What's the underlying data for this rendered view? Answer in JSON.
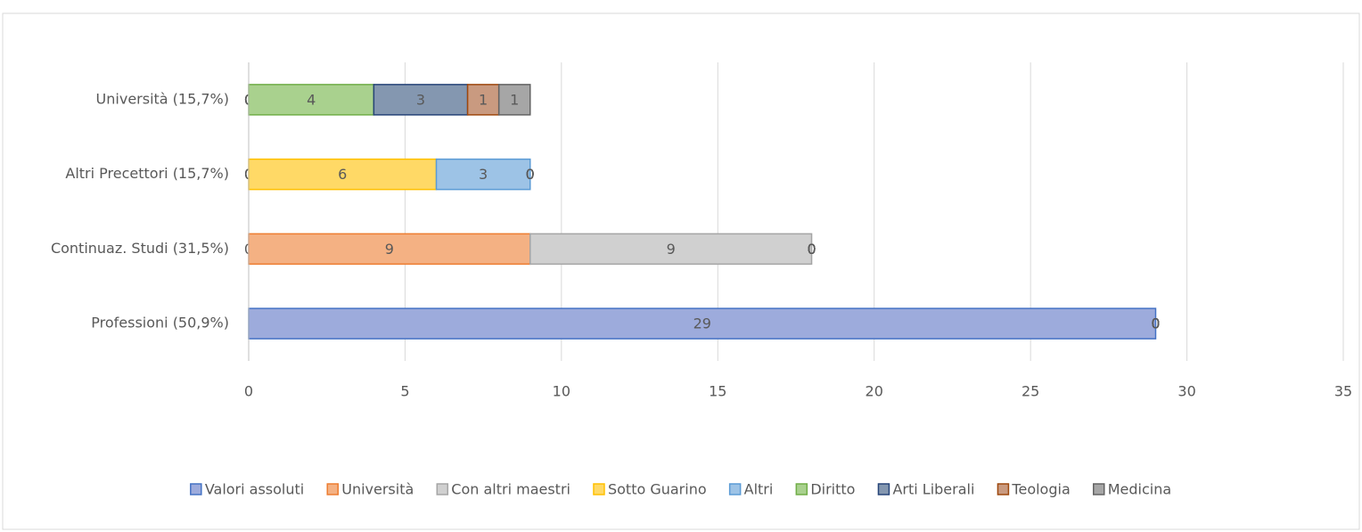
{
  "chart_data": {
    "type": "stacked_barh",
    "categories": [
      "Professioni (50,9%)",
      "Continuaz. Studi (31,5%)",
      "Altri Precettori (15,7%)",
      "Università (15,7%)"
    ],
    "series": [
      {
        "name": "Valori assoluti",
        "color": "#9dabdc",
        "edgecolor": "#4472c4",
        "values": [
          29,
          0,
          0,
          0
        ]
      },
      {
        "name": "Università",
        "color": "#f4b183",
        "edgecolor": "#ed7d31",
        "values": [
          0,
          9,
          0,
          0
        ]
      },
      {
        "name": "Con altri maestri",
        "color": "#d0d0d0",
        "edgecolor": "#a5a5a5",
        "values": [
          0,
          9,
          0,
          0
        ]
      },
      {
        "name": "Sotto Guarino",
        "color": "#ffd966",
        "edgecolor": "#ffc000",
        "values": [
          0,
          0,
          6,
          0
        ]
      },
      {
        "name": "Altri",
        "color": "#9dc3e6",
        "edgecolor": "#5b9bd5",
        "values": [
          0,
          0,
          3,
          0
        ]
      },
      {
        "name": "Diritto",
        "color": "#a9d18e",
        "edgecolor": "#70ad47",
        "values": [
          0,
          0,
          0,
          4
        ]
      },
      {
        "name": "Arti Liberali",
        "color": "#8497b0",
        "edgecolor": "#264478",
        "values": [
          0,
          0,
          0,
          3
        ]
      },
      {
        "name": "Teologia",
        "color": "#c99a80",
        "edgecolor": "#9e480e",
        "values": [
          0,
          0,
          0,
          1
        ]
      },
      {
        "name": "Medicina",
        "color": "#a6a6a6",
        "edgecolor": "#636363",
        "values": [
          0,
          0,
          0,
          1
        ]
      }
    ],
    "xlim": [
      0,
      35
    ],
    "xticks": [
      0,
      5,
      10,
      15,
      20,
      25,
      30,
      35
    ],
    "grid": true,
    "legend": "bottom"
  }
}
